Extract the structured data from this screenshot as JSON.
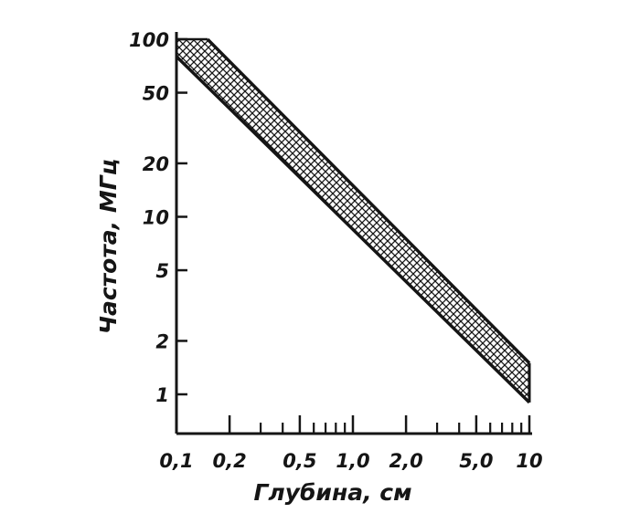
{
  "chart_data": {
    "type": "area",
    "title": "",
    "xlabel": "Глубина, см",
    "ylabel": "Частота, МГц",
    "xscale": "log",
    "yscale": "log",
    "xlim": [
      0.1,
      10
    ],
    "ylim": [
      0.7,
      110
    ],
    "grid": false,
    "x_ticks": [
      {
        "value": 0.1,
        "label": "0,1"
      },
      {
        "value": 0.2,
        "label": "0,2"
      },
      {
        "value": 0.5,
        "label": "0,5"
      },
      {
        "value": 1.0,
        "label": "1,0"
      },
      {
        "value": 2.0,
        "label": "2,0"
      },
      {
        "value": 5.0,
        "label": "5,0"
      },
      {
        "value": 10,
        "label": "10"
      }
    ],
    "x_minor_ticks": [
      0.3,
      0.4,
      0.6,
      0.7,
      0.8,
      0.9,
      3,
      4,
      6,
      7,
      8,
      9
    ],
    "y_ticks": [
      {
        "value": 1,
        "label": "1"
      },
      {
        "value": 2,
        "label": "2"
      },
      {
        "value": 5,
        "label": "5"
      },
      {
        "value": 10,
        "label": "10"
      },
      {
        "value": 20,
        "label": "20"
      },
      {
        "value": 50,
        "label": "50"
      },
      {
        "value": 100,
        "label": "100"
      }
    ],
    "band": {
      "fill": "crosshatch",
      "upper": {
        "x": [
          0.15,
          10
        ],
        "y": [
          100,
          1.5
        ]
      },
      "lower": {
        "x": [
          0.1,
          10
        ],
        "y": [
          80,
          0.9
        ]
      },
      "left_edge_x": 0.1,
      "right_edge_x": 10
    },
    "colors": {
      "ink": "#151515",
      "background": "#ffffff"
    }
  }
}
